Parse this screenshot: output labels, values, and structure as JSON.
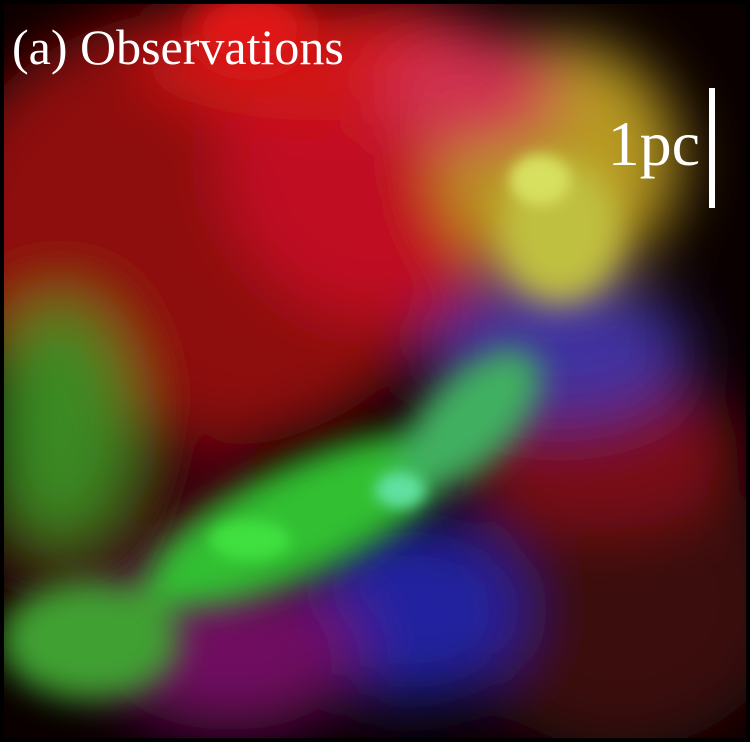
{
  "panel_label": "(a) Observations",
  "scale_bar_label": "1pc"
}
